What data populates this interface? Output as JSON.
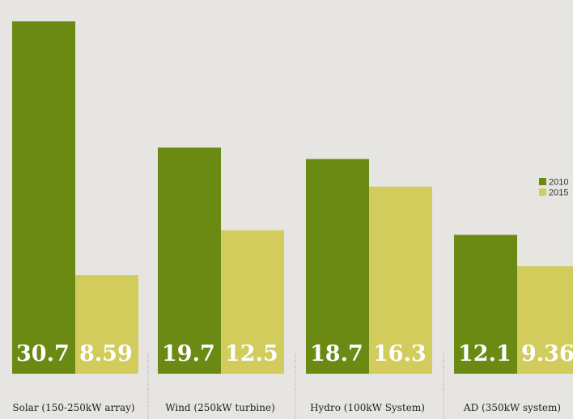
{
  "chart_data": {
    "type": "bar",
    "categories": [
      "Solar (150-250kW array)",
      "Wind (250kW turbine)",
      "Hydro (100kW System)",
      "AD (350kW system)"
    ],
    "series": [
      {
        "name": "2010",
        "values": [
          30.7,
          19.7,
          18.7,
          12.1
        ],
        "color": "#6b8a14"
      },
      {
        "name": "2015",
        "values": [
          8.59,
          12.5,
          16.3,
          9.36
        ],
        "color": "#d2cc5c"
      }
    ],
    "value_labels": [
      [
        "30.7",
        "19.7",
        "18.7",
        "12.1"
      ],
      [
        "8.59",
        "12.5",
        "16.3",
        "9.36"
      ]
    ],
    "title": "",
    "xlabel": "",
    "ylabel": "",
    "ylim": [
      0,
      31.5
    ],
    "grid": false,
    "legend": "right",
    "background": "#e7e5e1",
    "label_color": "#ffffff"
  }
}
